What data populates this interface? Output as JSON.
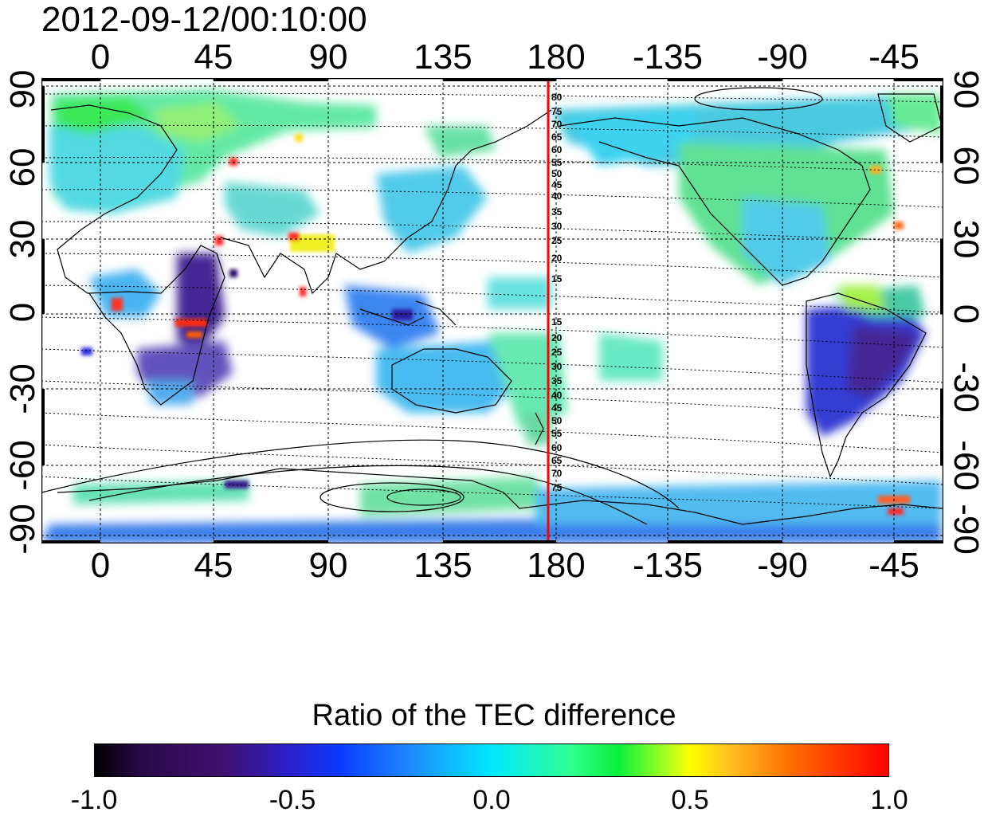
{
  "title": "2012-09-12/00:10:00",
  "axes": {
    "lon_ticks": [
      "0",
      "45",
      "90",
      "135",
      "180",
      "-135",
      "-90",
      "-45"
    ],
    "lat_ticks": [
      "90",
      "60",
      "30",
      "0",
      "-30",
      "-60",
      "-90"
    ],
    "mlat_labels_north": [
      "80",
      "75",
      "70",
      "65",
      "60",
      "55",
      "50",
      "45",
      "40",
      "35",
      "30",
      "25",
      "20",
      "15"
    ],
    "mlat_labels_south": [
      "15",
      "20",
      "25",
      "30",
      "35",
      "40",
      "45",
      "50",
      "55",
      "60",
      "65",
      "70",
      "75"
    ]
  },
  "colorbar": {
    "title": "Ratio of the TEC difference",
    "ticks": [
      "-1.0",
      "-0.5",
      "0.0",
      "0.5",
      "1.0"
    ],
    "range": [
      -1.0,
      1.0
    ]
  },
  "colors": {
    "meridian_line": "#ff0000",
    "coastline": "#000000",
    "grid": "#000000"
  },
  "map": {
    "projection": "cylindrical-equidistant",
    "lon_range": [
      -20,
      340
    ],
    "lat_range": [
      -90,
      90
    ],
    "highlight_meridian_lon": 178
  }
}
